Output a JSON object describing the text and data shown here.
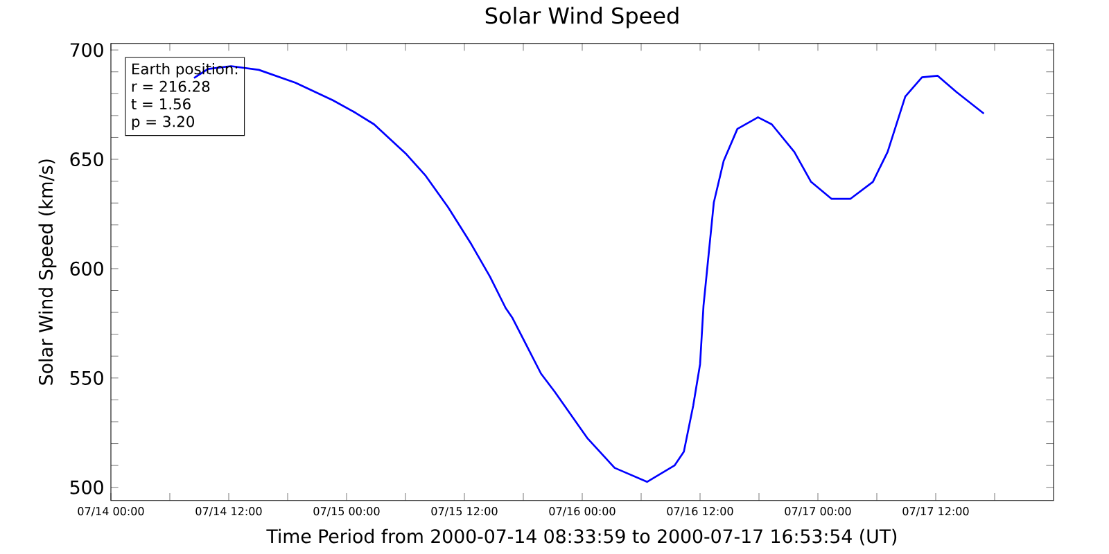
{
  "chart_data": {
    "type": "line",
    "title": "Solar Wind Speed",
    "xlabel": "Time Period from 2000-07-14 08:33:59 to 2000-07-17 16:53:54 (UT)",
    "ylabel": "Solar Wind Speed (km/s)",
    "annotations": [
      "Earth position:",
      "r = 216.28",
      "t = 1.56",
      "p = 3.20"
    ],
    "xlim": [
      "2000-07-14T00:00",
      "2000-07-18T00:00"
    ],
    "ylim": [
      494,
      703
    ],
    "xticks": [
      {
        "value": "2000-07-14T00:00",
        "label": "07/14 00:00"
      },
      {
        "value": "2000-07-14T06:00",
        "label": null
      },
      {
        "value": "2000-07-14T12:00",
        "label": "07/14 12:00"
      },
      {
        "value": "2000-07-14T18:00",
        "label": null
      },
      {
        "value": "2000-07-15T00:00",
        "label": "07/15 00:00"
      },
      {
        "value": "2000-07-15T06:00",
        "label": null
      },
      {
        "value": "2000-07-15T12:00",
        "label": "07/15 12:00"
      },
      {
        "value": "2000-07-15T18:00",
        "label": null
      },
      {
        "value": "2000-07-16T00:00",
        "label": "07/16 00:00"
      },
      {
        "value": "2000-07-16T06:00",
        "label": null
      },
      {
        "value": "2000-07-16T12:00",
        "label": "07/16 12:00"
      },
      {
        "value": "2000-07-16T18:00",
        "label": null
      },
      {
        "value": "2000-07-17T00:00",
        "label": "07/17 00:00"
      },
      {
        "value": "2000-07-17T06:00",
        "label": null
      },
      {
        "value": "2000-07-17T12:00",
        "label": "07/17 12:00"
      },
      {
        "value": "2000-07-17T18:00",
        "label": null
      }
    ],
    "yticks": [
      500,
      {
        "value": 510,
        "label": null
      },
      {
        "value": 520,
        "label": null
      },
      {
        "value": 530,
        "label": null
      },
      {
        "value": 540,
        "label": null
      },
      550,
      {
        "value": 560,
        "label": null
      },
      {
        "value": 570,
        "label": null
      },
      {
        "value": 580,
        "label": null
      },
      {
        "value": 590,
        "label": null
      },
      600,
      {
        "value": 610,
        "label": null
      },
      {
        "value": 620,
        "label": null
      },
      {
        "value": 630,
        "label": null
      },
      {
        "value": 640,
        "label": null
      },
      650,
      {
        "value": 660,
        "label": null
      },
      {
        "value": 670,
        "label": null
      },
      {
        "value": 680,
        "label": null
      },
      {
        "value": 690,
        "label": null
      },
      700
    ],
    "grid": false,
    "marker": "none",
    "line_style": "solid",
    "series": [
      {
        "color": "#0000ff",
        "x": [
          "2000-07-14T08:28",
          "2000-07-14T09:53",
          "2000-07-14T12:14",
          "2000-07-14T15:04",
          "2000-07-14T18:48",
          "2000-07-14T22:36",
          "2000-07-15T00:54",
          "2000-07-15T02:48",
          "2000-07-15T06:06",
          "2000-07-15T08:00",
          "2000-07-15T10:21",
          "2000-07-15T12:42",
          "2000-07-15T14:36",
          "2000-07-15T16:12",
          "2000-07-15T16:54",
          "2000-07-15T19:48",
          "2000-07-15T21:12",
          "2000-07-16T00:30",
          "2000-07-16T03:18",
          "2000-07-16T06:36",
          "2000-07-16T09:24",
          "2000-07-16T10:21",
          "2000-07-16T11:18",
          "2000-07-16T12:00",
          "2000-07-16T12:21",
          "2000-07-16T13:24",
          "2000-07-16T14:24",
          "2000-07-16T15:48",
          "2000-07-16T17:54",
          "2000-07-16T19:18",
          "2000-07-16T21:36",
          "2000-07-16T23:18",
          "2000-07-17T01:24",
          "2000-07-17T03:18",
          "2000-07-17T05:36",
          "2000-07-17T07:06",
          "2000-07-17T08:54",
          "2000-07-17T10:36",
          "2000-07-17T12:12",
          "2000-07-17T14:06",
          "2000-07-17T16:54"
        ],
        "values": [
          687.2,
          691.3,
          692.6,
          690.9,
          685,
          677,
          671.3,
          666,
          652.3,
          642.8,
          628,
          611.2,
          596.4,
          582,
          577.4,
          552,
          543.7,
          522.6,
          508.9,
          502.5,
          510,
          516.3,
          537.3,
          556.3,
          583,
          630.2,
          649.2,
          663.9,
          669.2,
          666,
          653.4,
          639.7,
          631.9,
          631.9,
          639.7,
          653.4,
          678.7,
          687.5,
          688.2,
          680.8,
          670.9
        ]
      }
    ]
  }
}
